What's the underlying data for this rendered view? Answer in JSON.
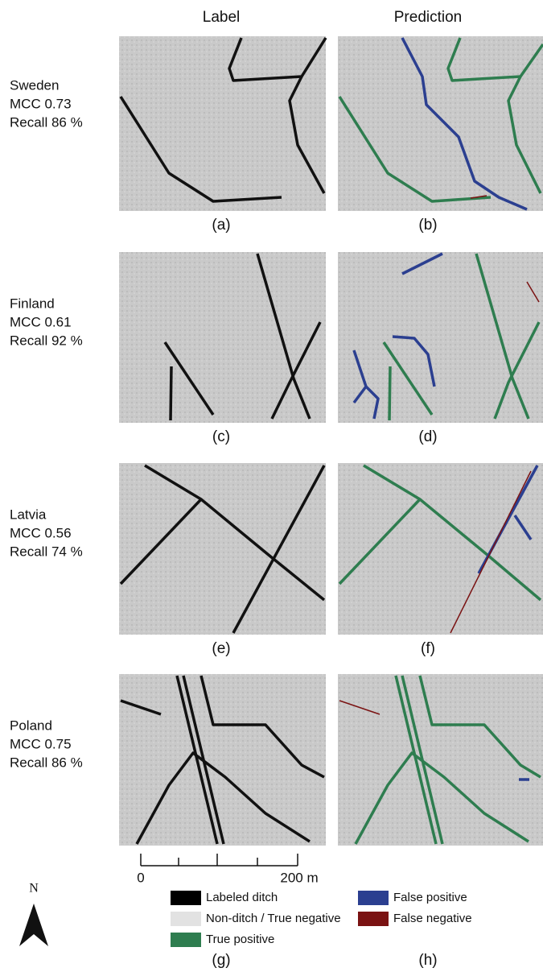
{
  "header": {
    "columns": [
      "Label",
      "Prediction"
    ]
  },
  "rows": [
    {
      "country": "Sweden",
      "mcc": "MCC 0.73",
      "recall": "Recall 86 %",
      "captions": [
        "(a)",
        "(b)"
      ]
    },
    {
      "country": "Finland",
      "mcc": "MCC 0.61",
      "recall": "Recall 92 %",
      "captions": [
        "(c)",
        "(d)"
      ]
    },
    {
      "country": "Latvia",
      "mcc": "MCC 0.56",
      "recall": "Recall 74 %",
      "captions": [
        "(e)",
        "(f)"
      ]
    },
    {
      "country": "Poland",
      "mcc": "MCC 0.75",
      "recall": "Recall 86 %",
      "captions": []
    }
  ],
  "scale_bar": {
    "labels": [
      "0",
      "200 m"
    ]
  },
  "north_arrow": {
    "label": "N"
  },
  "legend": {
    "items": [
      "Labeled ditch",
      "Non-ditch / True negative",
      "True positive",
      "False positive",
      "False negative"
    ]
  },
  "footer": {
    "captions": [
      "(g)",
      "(h)"
    ]
  }
}
